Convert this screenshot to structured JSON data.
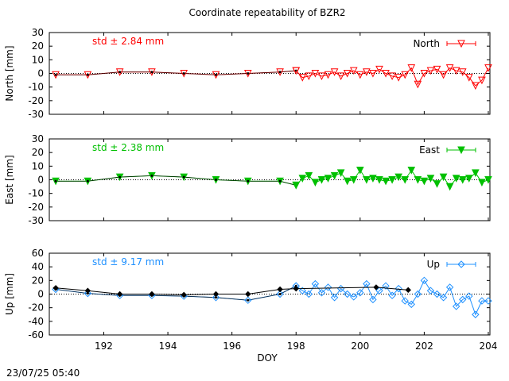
{
  "title": "Coordinate repeatability of BZR2",
  "footer_timestamp": "23/07/25 05:40",
  "xlabel": "DOY",
  "xlim": [
    190.3,
    204.05
  ],
  "xticks": [
    192,
    194,
    196,
    198,
    200,
    202,
    204
  ],
  "colors": {
    "north": "#ff0000",
    "east": "#00c000",
    "up": "#1e90ff",
    "reference": "#000000"
  },
  "chart_data": [
    {
      "type": "line",
      "panel": "north",
      "ylabel": "North [mm]",
      "ylim": [
        -30,
        30
      ],
      "yticks": [
        30,
        20,
        10,
        0,
        -10,
        -20,
        -30
      ],
      "std_label": "std ± 2.84 mm",
      "legend": "North",
      "marker": "triangle-down-open",
      "legend_position": "top-right",
      "series": [
        {
          "x": [
            190.5,
            191.5,
            192.5,
            193.5,
            194.5,
            195.5,
            196.5,
            197.5,
            198.0
          ],
          "y": [
            -1,
            -1,
            1,
            1,
            0,
            -1,
            0,
            1,
            2
          ]
        },
        {
          "x": [
            198.0,
            198.2,
            198.4,
            198.6,
            198.8,
            199.0,
            199.2,
            199.4,
            199.6,
            199.8,
            200.0,
            200.2,
            200.4,
            200.6,
            200.8,
            201.0,
            201.2,
            201.4,
            201.6,
            201.8,
            202.0,
            202.2,
            202.4,
            202.6,
            202.8,
            203.0,
            203.2,
            203.4,
            203.6,
            203.8,
            204.0
          ],
          "y": [
            2,
            -3,
            -2,
            0,
            -2,
            -1,
            1,
            -2,
            0,
            2,
            -1,
            1,
            0,
            3,
            0,
            -2,
            -3,
            -1,
            4,
            -8,
            0,
            2,
            3,
            -1,
            4,
            2,
            1,
            -3,
            -9,
            -5,
            4
          ]
        }
      ]
    },
    {
      "type": "line",
      "panel": "east",
      "ylabel": "East [mm]",
      "ylim": [
        -30,
        30
      ],
      "yticks": [
        30,
        20,
        10,
        0,
        -10,
        -20,
        -30
      ],
      "std_label": "std ± 2.38 mm",
      "legend": "East",
      "marker": "triangle-down-filled",
      "legend_position": "top-right",
      "series": [
        {
          "x": [
            190.5,
            191.5,
            192.5,
            193.5,
            194.5,
            195.5,
            196.5,
            197.5,
            198.0
          ],
          "y": [
            -1,
            -1,
            2,
            3,
            2,
            0,
            -1,
            -1,
            -4
          ]
        },
        {
          "x": [
            198.0,
            198.2,
            198.4,
            198.6,
            198.8,
            199.0,
            199.2,
            199.4,
            199.6,
            199.8,
            200.0,
            200.2,
            200.4,
            200.6,
            200.8,
            201.0,
            201.2,
            201.4,
            201.6,
            201.8,
            202.0,
            202.2,
            202.4,
            202.6,
            202.8,
            203.0,
            203.2,
            203.4,
            203.6,
            203.8,
            204.0
          ],
          "y": [
            -4,
            1,
            3,
            -2,
            0,
            1,
            3,
            5,
            -1,
            0,
            7,
            0,
            1,
            0,
            -1,
            0,
            2,
            0,
            7,
            0,
            -1,
            1,
            -3,
            2,
            -5,
            1,
            0,
            1,
            5,
            -2,
            0
          ]
        }
      ]
    },
    {
      "type": "line",
      "panel": "up",
      "ylabel": "Up [mm]",
      "ylim": [
        -60,
        60
      ],
      "yticks": [
        60,
        40,
        20,
        0,
        -20,
        -40,
        -60
      ],
      "std_label": "std ± 9.17 mm",
      "legend": "Up",
      "marker": "diamond-open",
      "legend_position": "top-right",
      "series": [
        {
          "x": [
            190.5,
            191.5,
            192.5,
            193.5,
            194.5,
            195.5,
            196.5,
            197.5,
            198.0
          ],
          "y": [
            7,
            1,
            -2,
            -2,
            -3,
            -5,
            -9,
            0,
            12
          ]
        },
        {
          "x": [
            198.0,
            198.2,
            198.4,
            198.6,
            198.8,
            199.0,
            199.2,
            199.4,
            199.6,
            199.8,
            200.0,
            200.2,
            200.4,
            200.6,
            200.8,
            201.0,
            201.2,
            201.4,
            201.6,
            201.8,
            202.0,
            202.2,
            202.4,
            202.6,
            202.8,
            203.0,
            203.2,
            203.4,
            203.6,
            203.8,
            204.0
          ],
          "y": [
            12,
            5,
            0,
            15,
            2,
            10,
            -5,
            8,
            0,
            -4,
            2,
            15,
            -8,
            5,
            12,
            -2,
            8,
            -10,
            -15,
            0,
            20,
            5,
            0,
            -5,
            10,
            -18,
            -8,
            -3,
            -30,
            -10,
            -10
          ]
        },
        {
          "name": "reference",
          "x": [
            190.5,
            191.5,
            192.5,
            193.5,
            194.5,
            195.5,
            196.5,
            197.5,
            198.0,
            200.5,
            201.5
          ],
          "y": [
            9,
            5,
            0,
            0,
            -1,
            0,
            0,
            7,
            8,
            10,
            6
          ]
        }
      ]
    }
  ]
}
